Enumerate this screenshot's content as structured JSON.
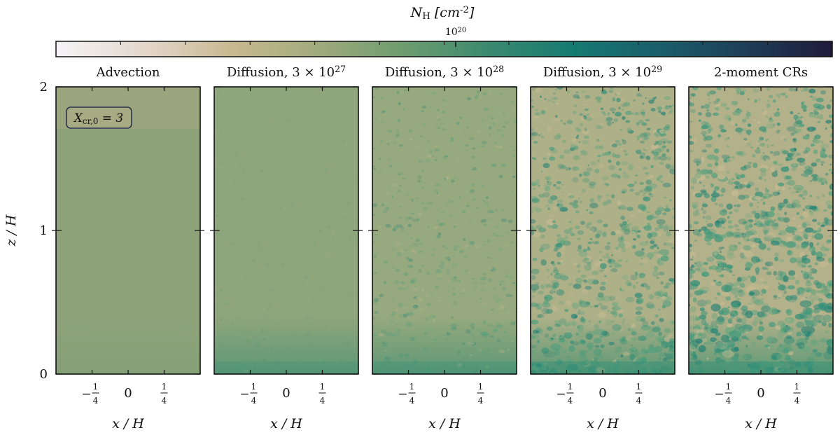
{
  "colorbar": {
    "label": "N_H [cm^-2]",
    "tick_label": "10^20",
    "colormap": [
      "#f5f3f6",
      "#e4d8cd",
      "#c9b993",
      "#a2ab7d",
      "#6f9d6f",
      "#3b8a6f",
      "#157a72",
      "#1a5e6a",
      "#1f3e58",
      "#1f1a3a"
    ]
  },
  "chart_data": [
    {
      "type": "heatmap",
      "title": "Advection",
      "annotation": "X_cr,0 = 3",
      "xlabel": "x / H",
      "ylabel": "z / H",
      "xticks": [
        "-1/4",
        "0",
        "1/4"
      ],
      "yticks": [
        "0",
        "1",
        "2"
      ],
      "xlim": [
        -0.5,
        0.5
      ],
      "ylim": [
        0,
        2
      ],
      "texture": "smooth",
      "base_color": "#8ea27a"
    },
    {
      "type": "heatmap",
      "title": "Diffusion, 3 × 10^27",
      "xlabel": "x / H",
      "xticks": [
        "-1/4",
        "0",
        "1/4"
      ],
      "xlim": [
        -0.5,
        0.5
      ],
      "ylim": [
        0,
        2
      ],
      "texture": "faint",
      "base_color": "#8fa57c"
    },
    {
      "type": "heatmap",
      "title": "Diffusion, 3 × 10^28",
      "xlabel": "x / H",
      "xticks": [
        "-1/4",
        "0",
        "1/4"
      ],
      "xlim": [
        -0.5,
        0.5
      ],
      "ylim": [
        0,
        2
      ],
      "texture": "speckled",
      "base_color": "#97a97e"
    },
    {
      "type": "heatmap",
      "title": "Diffusion, 3 × 10^29",
      "xlabel": "x / H",
      "xticks": [
        "-1/4",
        "0",
        "1/4"
      ],
      "xlim": [
        -0.5,
        0.5
      ],
      "ylim": [
        0,
        2
      ],
      "texture": "clumpy",
      "base_color": "#aeb088"
    },
    {
      "type": "heatmap",
      "title": "2-moment CRs",
      "xlabel": "x / H",
      "xticks": [
        "-1/4",
        "0",
        "1/4"
      ],
      "xlim": [
        -0.5,
        0.5
      ],
      "ylim": [
        0,
        2
      ],
      "texture": "clumpy-strong",
      "base_color": "#b3b18a"
    }
  ]
}
